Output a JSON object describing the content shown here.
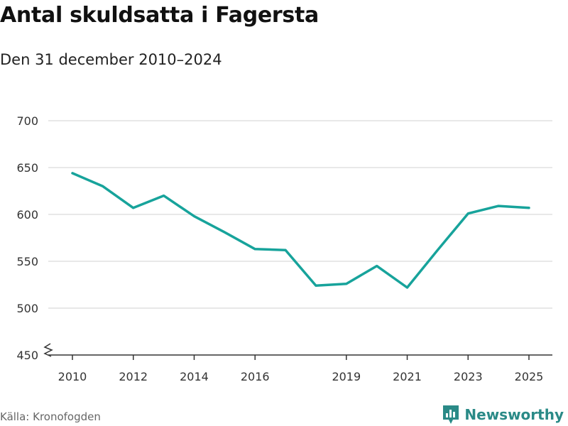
{
  "title": "Antal skuldsatta i Fagersta",
  "subtitle": "Den 31 december 2010–2024",
  "source": "Källa: Kronofogden",
  "brand": {
    "name": "Newsworthy",
    "icon": "newsworthy-logo-icon",
    "color": "#2a8a87"
  },
  "chart_data": {
    "type": "line",
    "title": "Antal skuldsatta i Fagersta",
    "subtitle": "Den 31 december 2010–2024",
    "x": [
      2010,
      2011,
      2012,
      2013,
      2014,
      2015,
      2016,
      2017,
      2018,
      2019,
      2020,
      2021,
      2022,
      2023,
      2024,
      2025
    ],
    "series": [
      {
        "values": [
          644,
          630,
          607,
          620,
          598,
          581,
          563,
          562,
          524,
          526,
          545,
          522,
          562,
          601,
          609,
          607
        ],
        "color": "#17a39b"
      }
    ],
    "xticks": [
      "2010",
      "2012",
      "2014",
      "2016",
      "2019",
      "2021",
      "2023",
      "2025"
    ],
    "yticks": [
      "450",
      "500",
      "550",
      "600",
      "650",
      "700"
    ],
    "ylim": [
      450,
      700
    ],
    "xlim": [
      2010,
      2025
    ],
    "y_axis_break": true,
    "grid": "horizontal",
    "legend": "none"
  }
}
